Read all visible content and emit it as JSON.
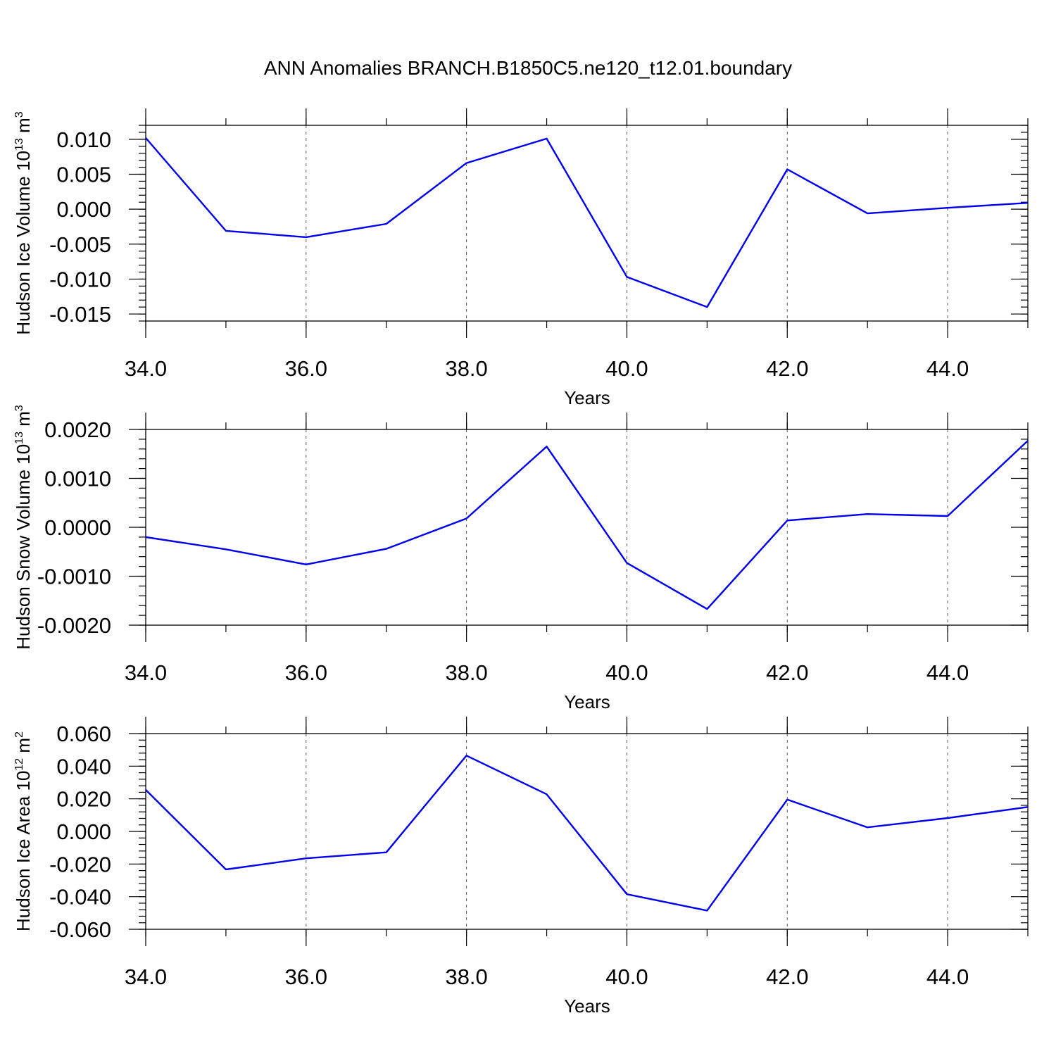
{
  "figure": {
    "title": "ANN Anomalies BRANCH.B1850C5.ne120_t12.01.boundary"
  },
  "style": {
    "line_color": "#0000ee"
  },
  "chart_data": [
    {
      "type": "line",
      "title": "",
      "xlabel": "Years",
      "ylabel": {
        "text": "Hudson Ice Volume 10",
        "sup1": "13",
        "mid": " m",
        "sup2": "3"
      },
      "xlim": [
        34,
        45
      ],
      "ylim": [
        -0.016,
        0.012
      ],
      "xticks": [
        34,
        36,
        38,
        40,
        42,
        44
      ],
      "xtick_labels": [
        "34.0",
        "36.0",
        "38.0",
        "40.0",
        "42.0",
        "44.0"
      ],
      "yticks": [
        -0.015,
        -0.01,
        -0.005,
        0,
        0.005,
        0.01
      ],
      "ytick_labels": [
        "-0.015",
        "-0.010",
        "-0.005",
        "0.000",
        "0.005",
        "0.010"
      ],
      "grid": "vertical dashed",
      "x": [
        34,
        35,
        36,
        37,
        38,
        39,
        40,
        41,
        42,
        43,
        44,
        45
      ],
      "series": [
        {
          "values": [
            0.0102,
            -0.0031,
            -0.004,
            -0.0021,
            0.0066,
            0.0101,
            -0.0097,
            -0.014,
            0.0057,
            -0.0006,
            0.0002,
            0.0009
          ]
        }
      ]
    },
    {
      "type": "line",
      "title": "",
      "xlabel": "Years",
      "ylabel": {
        "text": "Hudson Snow Volume 10",
        "sup1": "13",
        "mid": " m",
        "sup2": "3"
      },
      "xlim": [
        34,
        45
      ],
      "ylim": [
        -0.002,
        0.002
      ],
      "xticks": [
        34,
        36,
        38,
        40,
        42,
        44
      ],
      "xtick_labels": [
        "34.0",
        "36.0",
        "38.0",
        "40.0",
        "42.0",
        "44.0"
      ],
      "yticks": [
        -0.002,
        -0.001,
        0,
        0.001,
        0.002
      ],
      "ytick_labels": [
        "-0.0020",
        "-0.0010",
        "0.0000",
        "0.0010",
        "0.0020"
      ],
      "grid": "vertical dashed",
      "x": [
        34,
        35,
        36,
        37,
        38,
        39,
        40,
        41,
        42,
        43,
        44,
        45
      ],
      "series": [
        {
          "values": [
            -0.0002,
            -0.00045,
            -0.00076,
            -0.00044,
            0.00018,
            0.00165,
            -0.00073,
            -0.00167,
            0.00014,
            0.00027,
            0.00023,
            0.00177
          ]
        }
      ]
    },
    {
      "type": "line",
      "title": "",
      "xlabel": "Years",
      "ylabel": {
        "text": "Hudson Ice Area 10",
        "sup1": "12",
        "mid": " m",
        "sup2": "2"
      },
      "xlim": [
        34,
        45
      ],
      "ylim": [
        -0.06,
        0.06
      ],
      "xticks": [
        34,
        36,
        38,
        40,
        42,
        44
      ],
      "xtick_labels": [
        "34.0",
        "36.0",
        "38.0",
        "40.0",
        "42.0",
        "44.0"
      ],
      "yticks": [
        -0.06,
        -0.04,
        -0.02,
        0,
        0.02,
        0.04,
        0.06
      ],
      "ytick_labels": [
        "-0.060",
        "-0.040",
        "-0.020",
        "0.000",
        "0.020",
        "0.040",
        "0.060"
      ],
      "grid": "vertical dashed",
      "x": [
        34,
        35,
        36,
        37,
        38,
        39,
        40,
        41,
        42,
        43,
        44,
        45
      ],
      "series": [
        {
          "values": [
            0.0255,
            -0.0233,
            -0.0165,
            -0.0128,
            0.0465,
            0.0228,
            -0.0385,
            -0.0485,
            0.0195,
            0.0025,
            0.0082,
            0.015
          ]
        }
      ]
    }
  ]
}
